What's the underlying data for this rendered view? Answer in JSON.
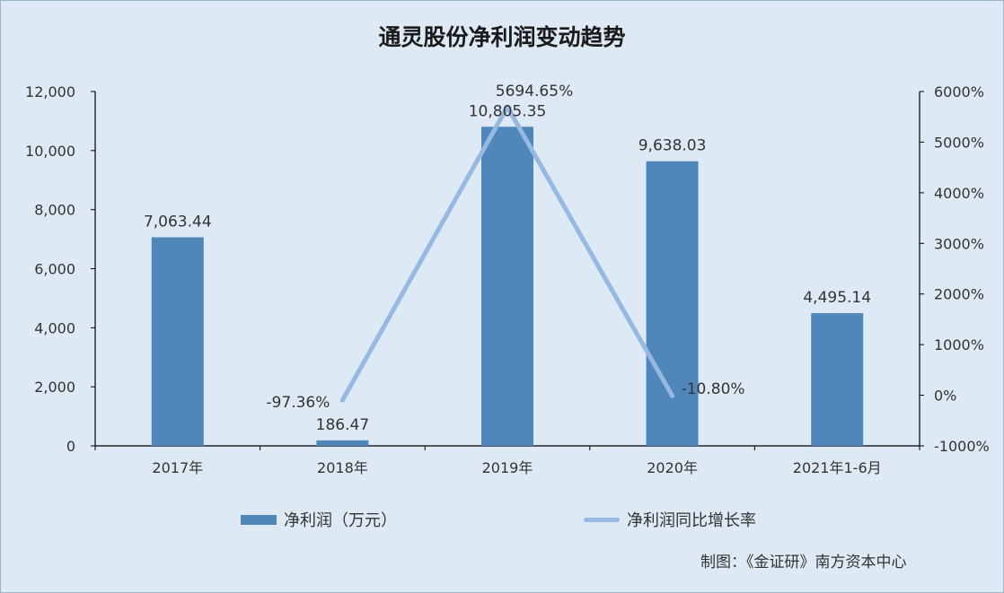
{
  "chart_data": {
    "type": "bar",
    "title": "通灵股份净利润变动趋势",
    "categories": [
      "2017年",
      "2018年",
      "2019年",
      "2020年",
      "2021年1-6月"
    ],
    "series": [
      {
        "name": "净利润（万元）",
        "type": "bar",
        "axis": "left",
        "values": [
          7063.44,
          186.47,
          10805.35,
          9638.03,
          4495.14
        ],
        "labels": [
          "7,063.44",
          "186.47",
          "10,805.35",
          "9,638.03",
          "4,495.14"
        ],
        "color": "#4f87bb"
      },
      {
        "name": "净利润同比增长率",
        "type": "line",
        "axis": "right",
        "values": [
          null,
          -97.36,
          5694.65,
          -10.8,
          null
        ],
        "labels": [
          "",
          "-97.36%",
          "5694.65%",
          "-10.80%",
          ""
        ],
        "color": "#97b8e0"
      }
    ],
    "y_left": {
      "ylim": [
        0,
        12000
      ],
      "ticks": [
        0,
        2000,
        4000,
        6000,
        8000,
        10000,
        12000
      ],
      "tick_labels": [
        "0",
        "2,000",
        "4,000",
        "6,000",
        "8,000",
        "10,000",
        "12,000"
      ]
    },
    "y_right": {
      "ylim": [
        -1000,
        6000
      ],
      "ticks": [
        -1000,
        0,
        1000,
        2000,
        3000,
        4000,
        5000,
        6000
      ],
      "tick_labels": [
        "-1000%",
        "0%",
        "1000%",
        "2000%",
        "3000%",
        "4000%",
        "5000%",
        "6000%"
      ]
    },
    "grid": false,
    "legend_position": "bottom"
  },
  "credit": "制图：《金证研》南方资本中心"
}
